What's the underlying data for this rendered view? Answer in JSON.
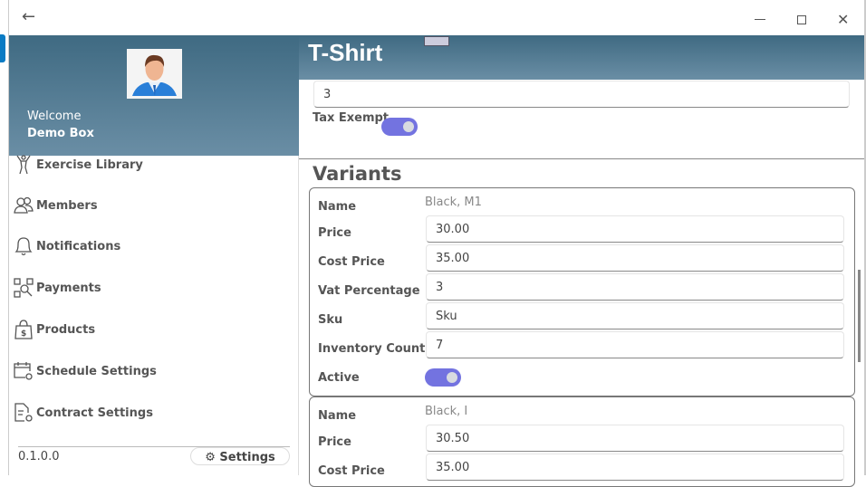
{
  "window": {
    "back_icon": "arrow-left-icon",
    "minimize_icon": "minimize-icon",
    "maximize_icon": "maximize-icon",
    "close_icon": "close-icon"
  },
  "sidebar": {
    "welcome": "Welcome",
    "user": "Demo Box",
    "items": [
      {
        "label": "Exercise Library",
        "icon": "exercise-icon"
      },
      {
        "label": "Members",
        "icon": "members-icon"
      },
      {
        "label": "Notifications",
        "icon": "bell-icon"
      },
      {
        "label": "Payments",
        "icon": "qr-icon"
      },
      {
        "label": "Products",
        "icon": "shopping-bag-icon"
      },
      {
        "label": "Schedule Settings",
        "icon": "calendar-gear-icon"
      },
      {
        "label": "Contract Settings",
        "icon": "document-gear-icon"
      }
    ],
    "version": "0.1.0.0",
    "settings_label": "Settings"
  },
  "header": {
    "title": "T-Shirt",
    "color_top": "#3f6a82",
    "color_bottom": "#6a8ea5"
  },
  "product": {
    "top_field_value": "3",
    "tax_exempt_label": "Tax Exempt",
    "tax_exempt": true
  },
  "variants": {
    "title": "Variants",
    "labels": {
      "name": "Name",
      "price": "Price",
      "cost": "Cost Price",
      "vat": "Vat Percentage",
      "sku": "Sku",
      "inventory": "Inventory Count",
      "active": "Active"
    },
    "items": [
      {
        "name": "Black, M1",
        "price": "30.00",
        "cost": "35.00",
        "vat": "3",
        "sku": "Sku",
        "inventory": "7",
        "active": true
      },
      {
        "name": "Black, I",
        "price": "30.50",
        "cost": "35.00"
      }
    ]
  },
  "accent": "#7373e0"
}
